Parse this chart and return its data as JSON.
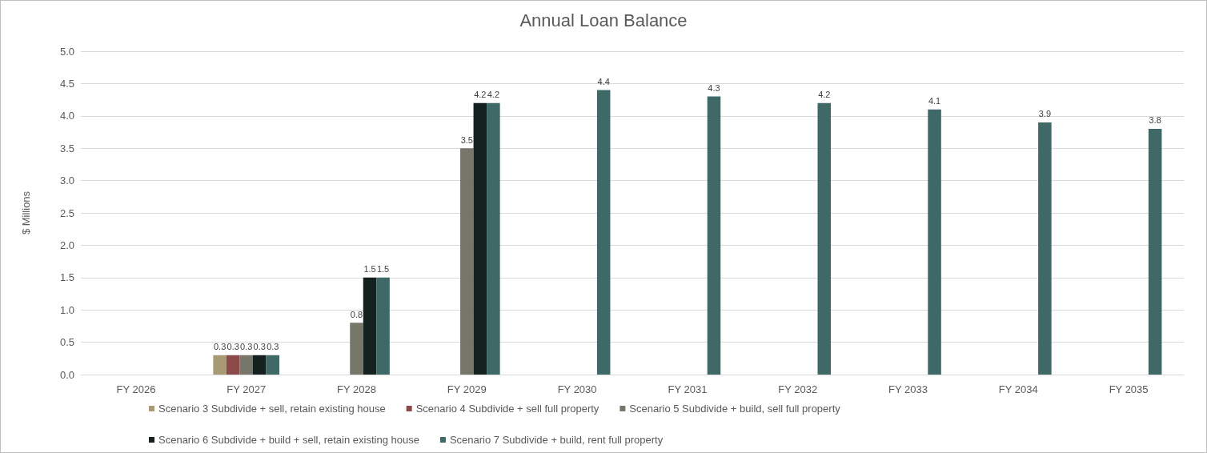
{
  "chart_data": {
    "type": "bar",
    "title": "Annual Loan Balance",
    "ylabel": "$ Millions",
    "categories": [
      "FY 2026",
      "FY 2027",
      "FY 2028",
      "FY 2029",
      "FY 2030",
      "FY 2031",
      "FY 2032",
      "FY 2033",
      "FY 2034",
      "FY 2035"
    ],
    "series": [
      {
        "name": "Scenario 3 Subdivide + sell, retain existing house",
        "color": "#a89a74",
        "values": [
          null,
          0.3,
          null,
          null,
          null,
          null,
          null,
          null,
          null,
          null
        ]
      },
      {
        "name": "Scenario 4 Subdivide + sell full property",
        "color": "#8c4a4a",
        "values": [
          null,
          0.3,
          null,
          null,
          null,
          null,
          null,
          null,
          null,
          null
        ]
      },
      {
        "name": "Scenario 5 Subdivide + build, sell full property",
        "color": "#76776a",
        "values": [
          null,
          0.3,
          0.8,
          3.5,
          null,
          null,
          null,
          null,
          null,
          null
        ]
      },
      {
        "name": "Scenario 6 Subdivide + build + sell, retain existing house",
        "color": "#15211f",
        "values": [
          null,
          0.3,
          1.5,
          4.2,
          null,
          null,
          null,
          null,
          null,
          null
        ]
      },
      {
        "name": "Scenario 7 Subdivide + build, rent full property",
        "color": "#3e6966",
        "values": [
          null,
          0.3,
          1.5,
          4.2,
          4.4,
          4.3,
          4.2,
          4.1,
          3.9,
          3.8
        ]
      }
    ],
    "ylim": [
      0,
      5
    ],
    "yticks": [
      {
        "value": 0,
        "label": "0.0"
      },
      {
        "value": 0.5,
        "label": "0.5"
      },
      {
        "value": 1,
        "label": "1.0"
      },
      {
        "value": 1.5,
        "label": "1.5"
      },
      {
        "value": 2,
        "label": "2.0"
      },
      {
        "value": 2.5,
        "label": "2.5"
      },
      {
        "value": 3,
        "label": "3.0"
      },
      {
        "value": 3.5,
        "label": "3.5"
      },
      {
        "value": 4,
        "label": "4.0"
      },
      {
        "value": 4.5,
        "label": "4.5"
      },
      {
        "value": 5,
        "label": "5.0"
      }
    ],
    "grid": "y",
    "legend": "bottom",
    "data_labels": true
  }
}
